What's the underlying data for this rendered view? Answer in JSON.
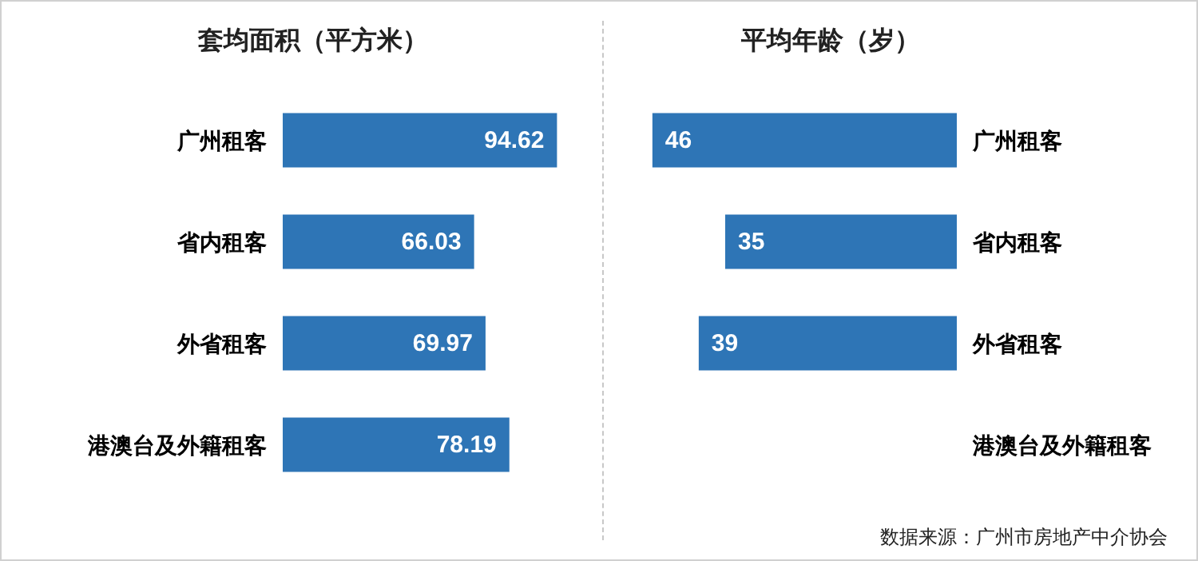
{
  "chart_data": [
    {
      "type": "bar",
      "orientation": "horizontal",
      "title": "套均面积（平方米）",
      "categories": [
        "广州租客",
        "省内租客",
        "外省租客",
        "港澳台及外籍租客"
      ],
      "values": [
        94.62,
        66.03,
        69.97,
        78.19
      ],
      "color": "#2e75b6",
      "data_labels": true,
      "tick_labels": "y"
    },
    {
      "type": "bar",
      "orientation": "horizontal",
      "title": "平均年龄（岁）",
      "categories": [
        "广州租客",
        "省内租客",
        "外省租客",
        "港澳台及外籍租客"
      ],
      "values": [
        46,
        35,
        39,
        null
      ],
      "color": "#2e75b6",
      "data_labels": true,
      "tick_labels": "y",
      "annotations": [
        "数据来源：广州市房地产中介协会"
      ]
    }
  ]
}
